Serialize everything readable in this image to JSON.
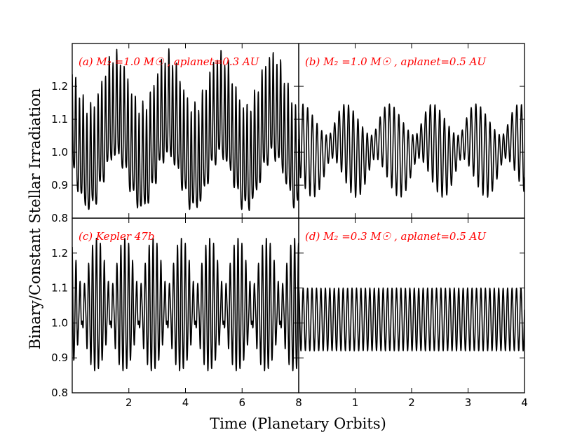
{
  "chart_data": {
    "type": "line",
    "xlabel": "Time (Planetary Orbits)",
    "ylabel": "Binary/Constant Stellar Irradiation",
    "panels": [
      {
        "id": "a",
        "label": "(a) M₂ =1.0 M☉ , aplanet=0.3 AU",
        "xlim": [
          0,
          8
        ],
        "ylim": [
          0.8,
          1.33
        ],
        "xticks": [],
        "yticks": [
          "0.8",
          "0.9",
          "1.0",
          "1.1",
          "1.2"
        ],
        "series": [
          {
            "signal": {
              "mean": 1.03,
              "amp_mod": 0.02,
              "components": [
                {
                  "freq": 7.6,
                  "amp": 0.15,
                  "phase": 0.3
                },
                {
                  "freq": 0.54,
                  "amp": 0.08,
                  "phase": 1.1
                },
                {
                  "freq": 15.2,
                  "amp": 0.035,
                  "phase": 0.7
                }
              ],
              "x": [
                0,
                8
              ],
              "n": 1200
            }
          }
        ]
      },
      {
        "id": "b",
        "label": "(b) M₂ =1.0 M☉ , aplanet=0.5 AU",
        "xlim": [
          0,
          4
        ],
        "ylim": [
          0.8,
          1.33
        ],
        "xticks": [],
        "yticks": [],
        "series": [
          {
            "signal": {
              "mean": 1.01,
              "amp_mod": 0.0,
              "components": [
                {
                  "freq": 12.4,
                  "amp": 0.085,
                  "phase": 0.2
                },
                {
                  "freq": 1.3,
                  "amp": 0.03,
                  "phase": 0.4
                },
                {
                  "freq": 11.1,
                  "amp": 0.045,
                  "phase": 1.6
                }
              ],
              "x": [
                0,
                4
              ],
              "n": 1000
            }
          }
        ]
      },
      {
        "id": "c",
        "label": "(c) Kepler 47b",
        "xlim": [
          0,
          8
        ],
        "ylim": [
          0.8,
          1.3
        ],
        "xticks": [
          "2",
          "4",
          "6",
          "8"
        ],
        "yticks": [
          "0.8",
          "0.9",
          "1.0",
          "1.1",
          "1.2"
        ],
        "series": [
          {
            "signal": {
              "mean": 1.035,
              "amp_mod": 0.0,
              "components": [
                {
                  "freq": 7.0,
                  "amp": 0.12,
                  "phase": 0.0
                },
                {
                  "freq": 8.0,
                  "amp": 0.07,
                  "phase": 0.9
                },
                {
                  "freq": 14.0,
                  "amp": 0.02,
                  "phase": 0.3
                }
              ],
              "x": [
                0,
                8
              ],
              "n": 1200
            }
          }
        ]
      },
      {
        "id": "d",
        "label": "(d) M₂ =0.3 M☉ , aplanet=0.5 AU",
        "xlim": [
          0,
          4
        ],
        "ylim": [
          0.8,
          1.3
        ],
        "xticks": [
          "1",
          "2",
          "3",
          "4"
        ],
        "yticks": [],
        "series": [
          {
            "signal": {
              "mean": 1.01,
              "amp_mod": 0.0,
              "components": [
                {
                  "freq": 12.7,
                  "amp": 0.09,
                  "phase": 0.0
                }
              ],
              "x": [
                0,
                4
              ],
              "n": 1000
            }
          }
        ]
      }
    ]
  }
}
